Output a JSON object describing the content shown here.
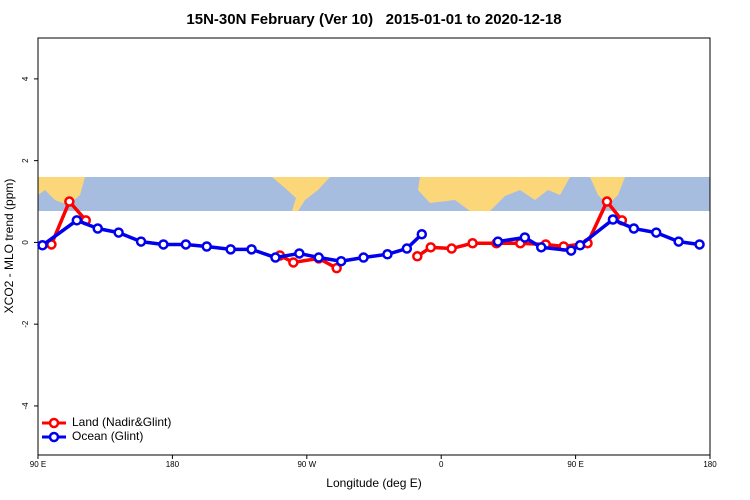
{
  "chart_data": {
    "type": "line",
    "title": "15N-30N February (Ver 10)   2015-01-01 to 2020-12-18",
    "x_label": "Longitude (deg E)",
    "y_label": "XCO2 - MLO trend (ppm)",
    "xlim": [
      90,
      540
    ],
    "ylim": [
      -5.2,
      5
    ],
    "xticks": [
      {
        "value": 90,
        "label": "90 E"
      },
      180,
      {
        "value": 270,
        "label": "90 W"
      },
      {
        "value": 360,
        "label": "0"
      },
      {
        "value": 450,
        "label": "90 E"
      },
      {
        "value": 540,
        "label": "180"
      }
    ],
    "yticks": [
      -4,
      -2,
      0,
      2,
      4
    ],
    "legend": "bottom-left",
    "series": [
      {
        "name": "Land (Nadir&Glint)",
        "color": "#ff0000",
        "x": [
          99,
          111,
          122,
          null,
          252,
          261,
          278,
          290,
          null,
          344,
          353,
          367,
          381,
          397,
          413,
          430,
          442,
          458,
          471,
          481
        ],
        "values": [
          -0.05,
          1.0,
          0.54,
          null,
          -0.32,
          -0.49,
          -0.39,
          -0.63,
          null,
          -0.34,
          -0.12,
          -0.15,
          -0.02,
          -0.02,
          -0.02,
          -0.05,
          -0.1,
          -0.02,
          1.0,
          0.54
        ]
      },
      {
        "name": "Ocean (Glint)",
        "color": "#0000ee",
        "x": [
          93,
          116,
          130,
          144,
          159,
          174,
          189,
          203,
          219,
          233,
          249,
          265,
          278,
          293,
          308,
          324,
          337,
          347,
          null,
          398,
          416,
          427,
          447,
          453,
          475,
          489,
          504,
          519,
          533
        ],
        "values": [
          -0.07,
          0.54,
          0.34,
          0.24,
          0.02,
          -0.05,
          -0.05,
          -0.1,
          -0.17,
          -0.17,
          -0.37,
          -0.27,
          -0.37,
          -0.46,
          -0.37,
          -0.29,
          -0.15,
          0.2,
          null,
          0.02,
          0.12,
          -0.12,
          -0.2,
          -0.07,
          0.56,
          0.34,
          0.24,
          0.02,
          -0.05
        ]
      }
    ]
  }
}
